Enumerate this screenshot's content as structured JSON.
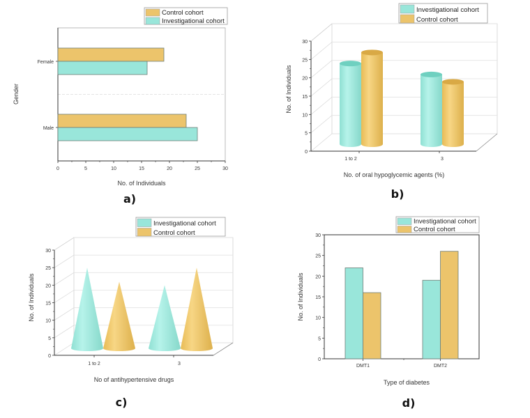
{
  "colors": {
    "investigational": "#99e6da",
    "investigational_dark": "#6fd0c0",
    "control": "#ecc46b",
    "control_dark": "#d9a945",
    "outline": "#6d7d76"
  },
  "chart_data": [
    {
      "id": "a",
      "panel_label": "a)",
      "type": "bar",
      "orientation": "horizontal",
      "categories": [
        "Male",
        "Female"
      ],
      "series": [
        {
          "name": "Control cohort",
          "key": "control",
          "values": [
            23,
            19
          ]
        },
        {
          "name": "Investigational cohort",
          "key": "investigational",
          "values": [
            25,
            16
          ]
        }
      ],
      "legend": [
        "Control cohort",
        "Investigational cohort"
      ],
      "xlabel": "No. of Individuals",
      "ylabel": "Gender",
      "xlim": [
        0,
        30
      ],
      "xticks": [
        "0",
        "5",
        "10",
        "15",
        "20",
        "25",
        "30"
      ],
      "legend_position": "top-right"
    },
    {
      "id": "b",
      "panel_label": "b)",
      "type": "bar",
      "style": "3d-cylinder",
      "categories": [
        "1 to 2",
        "3"
      ],
      "series": [
        {
          "name": "Investigational cohort",
          "key": "investigational",
          "values": [
            22,
            19
          ]
        },
        {
          "name": "Control cohort",
          "key": "control",
          "values": [
            25,
            17
          ]
        }
      ],
      "legend": [
        "Investigational cohort",
        "Control cohort"
      ],
      "xlabel": "No. of oral hypoglycemic agents (%)",
      "ylabel": "No. of Individuals",
      "ylim": [
        0,
        30
      ],
      "yticks": [
        "0",
        "5",
        "10",
        "15",
        "20",
        "25",
        "30"
      ],
      "grid": true,
      "legend_position": "top-right"
    },
    {
      "id": "c",
      "panel_label": "c)",
      "type": "bar",
      "style": "3d-cone",
      "categories": [
        "1 to 2",
        "3"
      ],
      "series": [
        {
          "name": "Investigational cohort",
          "key": "investigational",
          "values": [
            23,
            18
          ]
        },
        {
          "name": "Control cohort",
          "key": "control",
          "values": [
            19,
            23
          ]
        }
      ],
      "legend": [
        "Investigational cohort",
        "Control cohort"
      ],
      "xlabel": "No of antihypertensive drugs",
      "ylabel": "No. of Individuals",
      "ylim": [
        0,
        30
      ],
      "yticks": [
        "0",
        "5",
        "10",
        "15",
        "20",
        "25",
        "30"
      ],
      "grid": true,
      "legend_position": "top-right"
    },
    {
      "id": "d",
      "panel_label": "d)",
      "type": "bar",
      "categories": [
        "DMT1",
        "DMT2"
      ],
      "series": [
        {
          "name": "Investigational cohort",
          "key": "investigational",
          "values": [
            22,
            19
          ]
        },
        {
          "name": "Control cohort",
          "key": "control",
          "values": [
            16,
            26
          ]
        }
      ],
      "legend": [
        "Investigational cohort",
        "Control cohort"
      ],
      "xlabel": "Type of diabetes",
      "ylabel": "No. of Individuals",
      "ylim": [
        0,
        30
      ],
      "yticks": [
        "0",
        "5",
        "10",
        "15",
        "20",
        "25",
        "30"
      ],
      "legend_position": "top-right"
    }
  ]
}
